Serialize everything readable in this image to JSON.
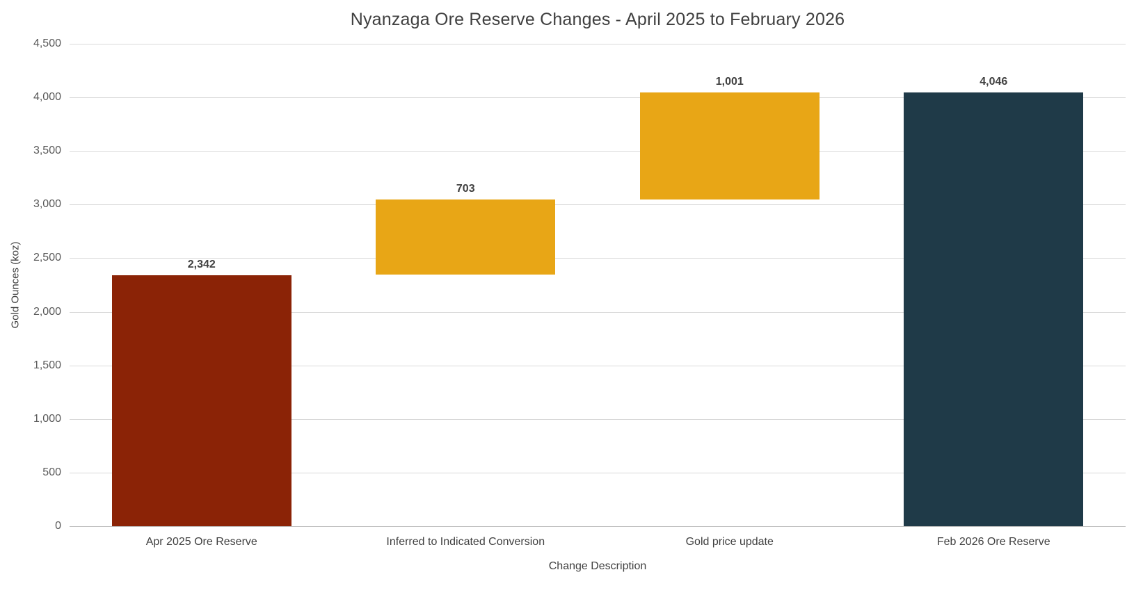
{
  "chart_data": {
    "type": "bar",
    "subtype": "waterfall",
    "title": "Nyanzaga Ore Reserve Changes - April 2025 to February 2026",
    "xlabel": "Change Description",
    "ylabel": "Gold Ounces (koz)",
    "ylim": [
      0,
      4500
    ],
    "yticks": [
      0,
      500,
      1000,
      1500,
      2000,
      2500,
      3000,
      3500,
      4000,
      4500
    ],
    "grid": "horizontal",
    "legend": "none",
    "categories": [
      "Apr 2025 Ore Reserve",
      "Inferred to Indicated Conversion",
      "Gold price update",
      "Feb 2026 Ore Reserve"
    ],
    "bars": [
      {
        "category": "Apr 2025 Ore Reserve",
        "value": 2342,
        "base": 0,
        "cumulative": 2342,
        "label": "2,342",
        "role": "start",
        "color": "#8B2306"
      },
      {
        "category": "Inferred to Indicated Conversion",
        "value": 703,
        "base": 2342,
        "cumulative": 3045,
        "label": "703",
        "role": "increase",
        "color": "#E8A616"
      },
      {
        "category": "Gold price update",
        "value": 1001,
        "base": 3045,
        "cumulative": 4046,
        "label": "1,001",
        "role": "increase",
        "color": "#E8A616"
      },
      {
        "category": "Feb 2026 Ore Reserve",
        "value": 4046,
        "base": 0,
        "cumulative": 4046,
        "label": "4,046",
        "role": "total",
        "color": "#1F3A48"
      }
    ],
    "colors": {
      "start": "#8B2306",
      "increase": "#E8A616",
      "total": "#1F3A48",
      "background": "#FFFFFF",
      "gridline": "#D9D9D9",
      "axis_line": "#BFBFBF",
      "title_text": "#404040",
      "tick_text": "#595959",
      "label_text": "#404040"
    }
  }
}
